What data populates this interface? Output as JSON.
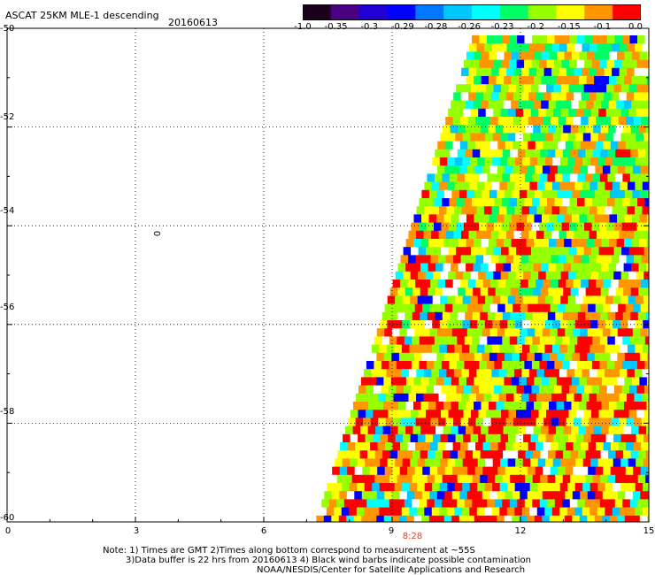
{
  "header": {
    "title": "ASCAT 25KM MLE-1 descending",
    "date": "20160613"
  },
  "colorbar": {
    "labels": [
      "-1.0",
      "-0.35",
      "-0.3",
      "-0.29",
      "-0.28",
      "-0.26",
      "-0.23",
      "-0.2",
      "-0.15",
      "-0.1",
      "0.0"
    ],
    "colors": [
      "#1a001a",
      "#4b0082",
      "#1e00d2",
      "#0000ff",
      "#0078ff",
      "#00c8ff",
      "#00ffff",
      "#00ff64",
      "#96ff00",
      "#ffff00",
      "#ff9600",
      "#ff0000"
    ]
  },
  "axes": {
    "y_labels": [
      "-50",
      "-52",
      "-54",
      "-56",
      "-58",
      "-60"
    ],
    "x_labels": [
      "0",
      "3",
      "6",
      "9",
      "12",
      "15"
    ],
    "lat_range": [
      -60,
      -50
    ],
    "lon_range": [
      0,
      15
    ]
  },
  "annotations": {
    "contour_label": "0",
    "orbit_time": "8:28"
  },
  "notes": {
    "line1": "Note: 1) Times are GMT 2)Times along bottom correspond to measurement at ~55S",
    "line2": "3)Data buffer is 22 hrs from 20160613 4) Black wind barbs indicate possible contamination",
    "line3": "NOAA/NESDIS/Center for Satellite Applications and Research"
  }
}
